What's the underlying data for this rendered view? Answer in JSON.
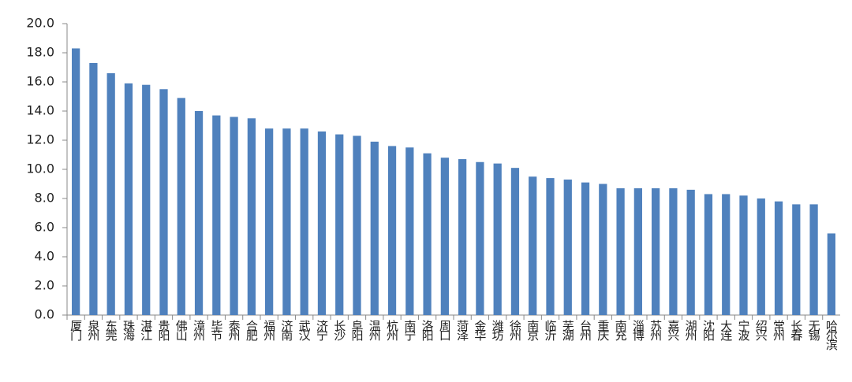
{
  "chart_data": {
    "type": "bar",
    "categories": [
      "厦门",
      "泉州",
      "东莞",
      "珠海",
      "湛江",
      "贵阳",
      "佛山",
      "漳州",
      "毕节",
      "泰州",
      "合肥",
      "福州",
      "济南",
      "武汉",
      "济宁",
      "长沙",
      "阜阳",
      "温州",
      "杭州",
      "南宁",
      "洛阳",
      "周口",
      "菏泽",
      "金华",
      "潍坊",
      "徐州",
      "南京",
      "临沂",
      "芜湖",
      "台州",
      "重庆",
      "南充",
      "淄博",
      "苏州",
      "嘉兴",
      "湖州",
      "沈阳",
      "大连",
      "宁波",
      "绍兴",
      "常州",
      "长春",
      "无锡",
      "哈尔滨"
    ],
    "values": [
      18.3,
      17.3,
      16.6,
      15.9,
      15.8,
      15.5,
      14.9,
      14.0,
      13.7,
      13.6,
      13.5,
      12.8,
      12.8,
      12.8,
      12.6,
      12.4,
      12.3,
      11.9,
      11.6,
      11.5,
      11.1,
      10.8,
      10.7,
      10.5,
      10.4,
      10.1,
      9.5,
      9.4,
      9.3,
      9.1,
      9.0,
      8.7,
      8.7,
      8.7,
      8.7,
      8.6,
      8.3,
      8.3,
      8.2,
      8.0,
      7.8,
      7.6,
      7.6,
      5.6
    ],
    "color": "#4f81bd",
    "ylim": [
      0,
      20
    ],
    "yticks": [
      {
        "value": 0,
        "label": "0.0"
      },
      {
        "value": 2,
        "label": "2.0"
      },
      {
        "value": 4,
        "label": "4.0"
      },
      {
        "value": 6,
        "label": "6.0"
      },
      {
        "value": 8,
        "label": "8.0"
      },
      {
        "value": 10,
        "label": "10.0"
      },
      {
        "value": 12,
        "label": "12.0"
      },
      {
        "value": 14,
        "label": "14.0"
      },
      {
        "value": 16,
        "label": "16.0"
      },
      {
        "value": 18,
        "label": "18.0"
      },
      {
        "value": 20,
        "label": "20.0"
      }
    ],
    "grid": false
  }
}
